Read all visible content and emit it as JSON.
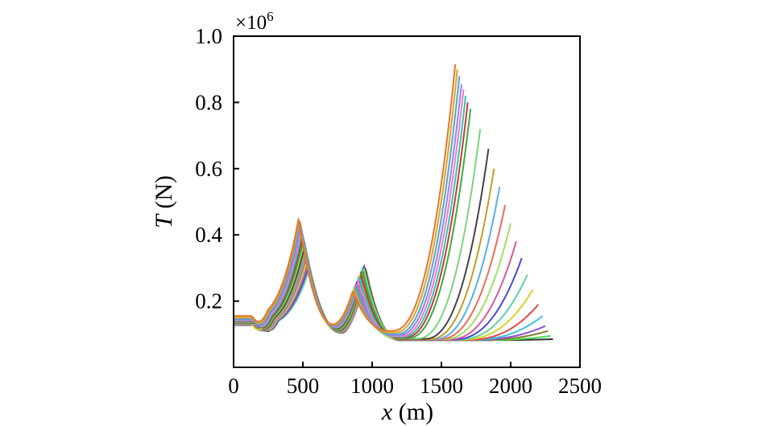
{
  "chart_data": {
    "type": "line",
    "xlabel_var": "x",
    "xlabel_unit": " (m)",
    "ylabel_var": "T",
    "ylabel_unit": " (N)",
    "y_multiplier_base": "×10",
    "y_multiplier_exp": "6",
    "xlim": [
      0,
      2500
    ],
    "ylim": [
      0,
      1.0
    ],
    "x_ticks": [
      0,
      500,
      1000,
      1500,
      2000,
      2500
    ],
    "x_tick_labels": [
      "0",
      "500",
      "1000",
      "1500",
      "2000",
      "2500"
    ],
    "y_ticks": [
      0.2,
      0.4,
      0.6,
      0.8,
      1.0
    ],
    "y_tick_labels": [
      "0.2",
      "0.4",
      "0.6",
      "0.8",
      "1.0"
    ],
    "grid": false,
    "legend": "none",
    "series_params": {
      "count": 24,
      "colors": [
        "#e8742a",
        "#d4a62a",
        "#5a9fd4",
        "#8a8ae0",
        "#ef7ac8",
        "#2fc4b0",
        "#c63a3a",
        "#3ea83e",
        "#7dd47d",
        "#444444",
        "#c89a2a",
        "#55b0e8",
        "#f06a5a",
        "#a0e060",
        "#d45aa0",
        "#4a4ad4",
        "#60d0a0",
        "#d4d42a",
        "#e04a4a",
        "#40c0e0",
        "#9050d0",
        "#808030",
        "#50e050",
        "#333333"
      ],
      "start_T": [
        0.155,
        0.15,
        0.147,
        0.144,
        0.142,
        0.14,
        0.138,
        0.137,
        0.136,
        0.135,
        0.134,
        0.133,
        0.132,
        0.132,
        0.131,
        0.131,
        0.13,
        0.13,
        0.129,
        0.129,
        0.128,
        0.128,
        0.128,
        0.127
      ],
      "peak1_x": [
        470,
        475,
        480,
        485,
        490,
        495,
        500,
        505,
        510,
        515,
        520,
        525,
        530,
        535,
        540,
        545,
        550,
        470,
        480,
        490,
        500,
        510,
        520,
        530
      ],
      "peak1_T": [
        0.45,
        0.445,
        0.44,
        0.43,
        0.42,
        0.41,
        0.4,
        0.39,
        0.38,
        0.37,
        0.36,
        0.35,
        0.34,
        0.33,
        0.32,
        0.31,
        0.3,
        0.44,
        0.42,
        0.4,
        0.38,
        0.36,
        0.34,
        0.32
      ],
      "valley1_x": [
        720,
        725,
        730,
        735,
        740,
        745,
        750,
        755,
        760,
        765,
        770,
        775,
        780,
        730,
        735,
        740,
        745,
        750,
        755,
        760,
        765,
        770,
        775,
        780
      ],
      "valley1_T": [
        0.13,
        0.128,
        0.126,
        0.124,
        0.122,
        0.12,
        0.118,
        0.116,
        0.114,
        0.112,
        0.11,
        0.108,
        0.106,
        0.125,
        0.12,
        0.118,
        0.116,
        0.114,
        0.112,
        0.11,
        0.108,
        0.106,
        0.105,
        0.104
      ],
      "peak2_x": [
        860,
        870,
        880,
        890,
        900,
        910,
        920,
        930,
        940,
        945,
        950,
        955,
        960,
        870,
        880,
        890,
        900,
        910,
        920,
        930,
        940,
        945,
        950,
        955
      ],
      "peak2_T": [
        0.23,
        0.235,
        0.24,
        0.25,
        0.26,
        0.27,
        0.28,
        0.29,
        0.3,
        0.305,
        0.3,
        0.295,
        0.29,
        0.24,
        0.25,
        0.26,
        0.27,
        0.28,
        0.29,
        0.3,
        0.31,
        0.305,
        0.3,
        0.295
      ],
      "valley2_x": [
        1120,
        1130,
        1140,
        1150,
        1160,
        1170,
        1180,
        1190,
        1200,
        1200,
        1200,
        1200,
        1200,
        1200,
        1200,
        1200,
        1200,
        1200,
        1200,
        1200,
        1200,
        1200,
        1200,
        1200
      ],
      "valley2_T": [
        0.11,
        0.105,
        0.1,
        0.097,
        0.094,
        0.092,
        0.09,
        0.088,
        0.087,
        0.086,
        0.085,
        0.085,
        0.085,
        0.085,
        0.084,
        0.084,
        0.084,
        0.084,
        0.083,
        0.083,
        0.083,
        0.082,
        0.082,
        0.082
      ],
      "end_x": [
        1600,
        1615,
        1630,
        1645,
        1660,
        1675,
        1690,
        1710,
        1780,
        1840,
        1880,
        1920,
        1960,
        2000,
        2040,
        2080,
        2120,
        2160,
        2200,
        2230,
        2250,
        2270,
        2290,
        2305
      ],
      "end_T": [
        0.915,
        0.9,
        0.88,
        0.855,
        0.84,
        0.82,
        0.8,
        0.78,
        0.72,
        0.66,
        0.6,
        0.545,
        0.49,
        0.435,
        0.38,
        0.33,
        0.28,
        0.235,
        0.19,
        0.155,
        0.125,
        0.11,
        0.095,
        0.085
      ]
    }
  }
}
